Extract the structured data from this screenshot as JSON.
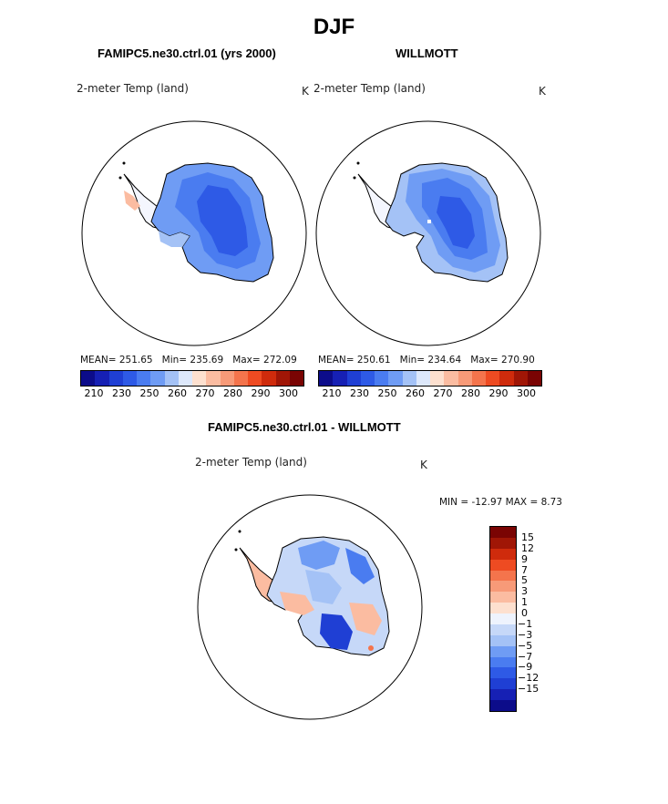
{
  "page_title": "DJF",
  "panels": {
    "model": {
      "title": "FAMIPC5.ne30.ctrl.01 (yrs 2000)",
      "variable": "2-meter Temp (land)",
      "units": "K",
      "stats": {
        "mean_label": "MEAN=",
        "mean": "251.65",
        "min_label": "Min=",
        "min": "235.69",
        "max_label": "Max=",
        "max": "272.09"
      }
    },
    "obs": {
      "title": "WILLMOTT",
      "variable": "2-meter Temp (land)",
      "units": "K",
      "stats": {
        "mean_label": "MEAN=",
        "mean": "250.61",
        "min_label": "Min=",
        "min": "234.64",
        "max_label": "Max=",
        "max": "270.90"
      }
    },
    "diff": {
      "title": "FAMIPC5.ne30.ctrl.01 - WILLMOTT",
      "variable": "2-meter Temp (land)",
      "units": "K",
      "minmax_text": "MIN = -12.97 MAX =   8.73"
    }
  },
  "abs_colorbar": {
    "colors": [
      "#0c0c8a",
      "#1620b4",
      "#1f3fd4",
      "#2e5ae6",
      "#4a7cf0",
      "#6f9cf4",
      "#a4c2f6",
      "#dde8fb",
      "#fde0cf",
      "#fbbca1",
      "#f79a78",
      "#f4744c",
      "#ee4b22",
      "#cf2b0c",
      "#a01606",
      "#7a0403"
    ],
    "tick_labels": [
      "210",
      "230",
      "250",
      "260",
      "270",
      "280",
      "290",
      "300"
    ]
  },
  "diff_colorbar": {
    "colors": [
      "#7a0403",
      "#a01606",
      "#cf2b0c",
      "#ee4b22",
      "#f4744c",
      "#f79a78",
      "#fbbca1",
      "#fde0cf",
      "#eef3fd",
      "#c6d8f8",
      "#a4c2f6",
      "#6f9cf4",
      "#4a7cf0",
      "#2e5ae6",
      "#1f3fd4",
      "#1620b4",
      "#0c0c8a"
    ],
    "tick_labels": [
      "15",
      "12",
      "9",
      "7",
      "5",
      "3",
      "1",
      "0",
      "−1",
      "−3",
      "−5",
      "−7",
      "−9",
      "−12",
      "−15"
    ]
  },
  "colors": {
    "cold_core": "#2e5ae6",
    "mid": "#4a7cf0",
    "light": "#6f9cf4",
    "pale": "#a4c2f6",
    "warm": "#fbbca1",
    "warm_strong": "#f4744c",
    "deep_cold": "#1f3fd4"
  }
}
